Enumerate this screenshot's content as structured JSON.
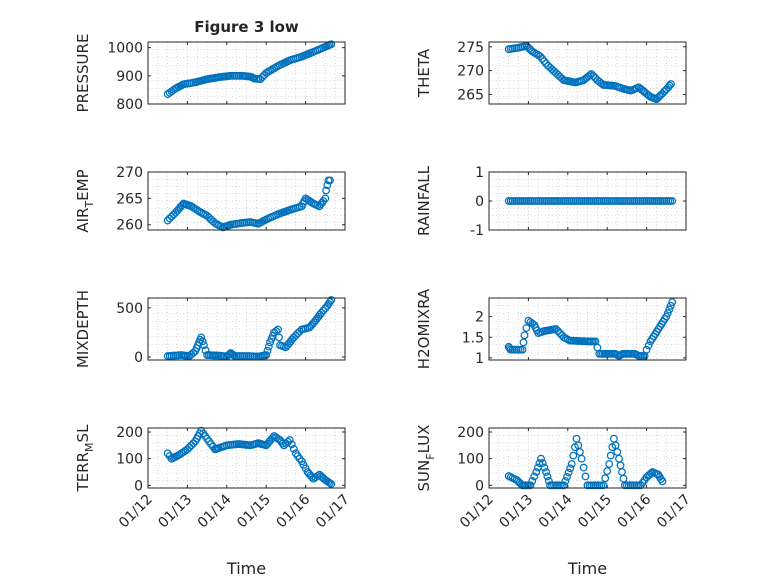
{
  "chart_data": [
    {
      "id": "pressure",
      "type": "scatter",
      "title": "Figure 3 low",
      "ylabel": "PRESSURE",
      "ylabel_parts": [
        "PRESSURE"
      ],
      "xlim": [
        0,
        5
      ],
      "ylim": [
        800,
        1020
      ],
      "yticks": [
        800,
        900,
        1000
      ],
      "ytick_labels": [
        "800",
        "900",
        "1000"
      ],
      "xticks": [
        0,
        1,
        2,
        3,
        4,
        5
      ],
      "show_xticklabels": false,
      "xlabel": "",
      "grid": true,
      "keypoints": [
        [
          0.5,
          835
        ],
        [
          0.7,
          855
        ],
        [
          0.9,
          870
        ],
        [
          1.2,
          877
        ],
        [
          1.5,
          888
        ],
        [
          1.8,
          895
        ],
        [
          2.1,
          900
        ],
        [
          2.4,
          900
        ],
        [
          2.6,
          897
        ],
        [
          2.7,
          890
        ],
        [
          2.85,
          888
        ],
        [
          3.0,
          910
        ],
        [
          3.3,
          935
        ],
        [
          3.6,
          955
        ],
        [
          3.9,
          968
        ],
        [
          4.2,
          985
        ],
        [
          4.45,
          1000
        ],
        [
          4.65,
          1012
        ]
      ]
    },
    {
      "id": "theta",
      "type": "scatter",
      "title": "",
      "ylabel": "THETA",
      "ylabel_parts": [
        "THETA"
      ],
      "xlim": [
        0,
        5
      ],
      "ylim": [
        263,
        276
      ],
      "yticks": [
        265,
        270,
        275
      ],
      "ytick_labels": [
        "265",
        "270",
        "275"
      ],
      "xticks": [
        0,
        1,
        2,
        3,
        4,
        5
      ],
      "show_xticklabels": false,
      "xlabel": "",
      "grid": true,
      "keypoints": [
        [
          0.5,
          274.5
        ],
        [
          0.75,
          274.8
        ],
        [
          0.95,
          275.2
        ],
        [
          1.1,
          274
        ],
        [
          1.3,
          273
        ],
        [
          1.5,
          271
        ],
        [
          1.7,
          269.5
        ],
        [
          1.9,
          268
        ],
        [
          2.2,
          267.5
        ],
        [
          2.4,
          268
        ],
        [
          2.6,
          269.3
        ],
        [
          2.75,
          268
        ],
        [
          2.9,
          267
        ],
        [
          3.2,
          266.8
        ],
        [
          3.4,
          266.2
        ],
        [
          3.6,
          265.8
        ],
        [
          3.8,
          266.5
        ],
        [
          3.95,
          265.5
        ],
        [
          4.1,
          264.5
        ],
        [
          4.25,
          264
        ],
        [
          4.4,
          265.2
        ],
        [
          4.55,
          266.5
        ],
        [
          4.62,
          267.2
        ]
      ]
    },
    {
      "id": "airtemp",
      "type": "scatter",
      "title": "",
      "ylabel": "AIR_TEMP",
      "ylabel_parts": [
        "AIR",
        "T",
        "EMP"
      ],
      "xlim": [
        0,
        5
      ],
      "ylim": [
        259,
        270
      ],
      "yticks": [
        260,
        265,
        270
      ],
      "ytick_labels": [
        "260",
        "265",
        "270"
      ],
      "xticks": [
        0,
        1,
        2,
        3,
        4,
        5
      ],
      "show_xticklabels": false,
      "xlabel": "",
      "grid": true,
      "keypoints": [
        [
          0.5,
          260.8
        ],
        [
          0.7,
          262.3
        ],
        [
          0.9,
          264
        ],
        [
          1.1,
          263.5
        ],
        [
          1.3,
          262.5
        ],
        [
          1.5,
          261.7
        ],
        [
          1.7,
          260.3
        ],
        [
          1.9,
          259.5
        ],
        [
          2.1,
          260
        ],
        [
          2.35,
          260.3
        ],
        [
          2.6,
          260.5
        ],
        [
          2.8,
          260.2
        ],
        [
          3.0,
          261
        ],
        [
          3.3,
          262
        ],
        [
          3.6,
          262.8
        ],
        [
          3.9,
          263.5
        ],
        [
          4.0,
          265
        ],
        [
          4.2,
          264
        ],
        [
          4.35,
          263.5
        ],
        [
          4.45,
          264.5
        ],
        [
          4.5,
          265
        ],
        [
          4.52,
          266.5
        ],
        [
          4.55,
          267.5
        ],
        [
          4.58,
          268.4
        ],
        [
          4.62,
          268.4
        ]
      ]
    },
    {
      "id": "rainfall",
      "type": "scatter",
      "title": "",
      "ylabel": "RAINFALL",
      "ylabel_parts": [
        "RAINFALL"
      ],
      "xlim": [
        0,
        5
      ],
      "ylim": [
        -1,
        1
      ],
      "yticks": [
        -1,
        0,
        1
      ],
      "ytick_labels": [
        "-1",
        "0",
        "1"
      ],
      "xticks": [
        0,
        1,
        2,
        3,
        4,
        5
      ],
      "show_xticklabels": false,
      "xlabel": "",
      "grid": true,
      "keypoints": [
        [
          0.5,
          0
        ],
        [
          4.65,
          0
        ]
      ]
    },
    {
      "id": "mixdepth",
      "type": "scatter",
      "title": "",
      "ylabel": "MIXDEPTH",
      "ylabel_parts": [
        "MIXDEPTH"
      ],
      "xlim": [
        0,
        5
      ],
      "ylim": [
        -30,
        600
      ],
      "yticks": [
        0,
        500
      ],
      "ytick_labels": [
        "0",
        "500"
      ],
      "xticks": [
        0,
        1,
        2,
        3,
        4,
        5
      ],
      "show_xticklabels": false,
      "xlabel": "",
      "grid": true,
      "keypoints": [
        [
          0.5,
          10
        ],
        [
          0.85,
          20
        ],
        [
          1.05,
          10
        ],
        [
          1.2,
          60
        ],
        [
          1.3,
          150
        ],
        [
          1.35,
          200
        ],
        [
          1.42,
          120
        ],
        [
          1.5,
          20
        ],
        [
          1.8,
          15
        ],
        [
          2.0,
          5
        ],
        [
          2.1,
          40
        ],
        [
          2.2,
          10
        ],
        [
          2.5,
          10
        ],
        [
          2.8,
          5
        ],
        [
          3.0,
          20
        ],
        [
          3.1,
          150
        ],
        [
          3.2,
          250
        ],
        [
          3.3,
          280
        ],
        [
          3.35,
          120
        ],
        [
          3.5,
          100
        ],
        [
          3.7,
          200
        ],
        [
          3.9,
          280
        ],
        [
          4.1,
          300
        ],
        [
          4.25,
          370
        ],
        [
          4.4,
          450
        ],
        [
          4.55,
          520
        ],
        [
          4.65,
          580
        ]
      ]
    },
    {
      "id": "h2omixra",
      "type": "scatter",
      "title": "",
      "ylabel": "H2OMIXRA",
      "ylabel_parts": [
        "H2OMIXRA"
      ],
      "xlim": [
        0,
        5
      ],
      "ylim": [
        0.95,
        2.45
      ],
      "yticks": [
        1,
        1.5,
        2
      ],
      "ytick_labels": [
        "1",
        "1.5",
        "2"
      ],
      "xticks": [
        0,
        1,
        2,
        3,
        4,
        5
      ],
      "show_xticklabels": false,
      "xlabel": "",
      "grid": true,
      "keypoints": [
        [
          0.5,
          1.27
        ],
        [
          0.55,
          1.2
        ],
        [
          0.85,
          1.2
        ],
        [
          0.9,
          1.55
        ],
        [
          1.0,
          1.9
        ],
        [
          1.15,
          1.8
        ],
        [
          1.25,
          1.6
        ],
        [
          1.4,
          1.65
        ],
        [
          1.7,
          1.7
        ],
        [
          1.9,
          1.5
        ],
        [
          2.05,
          1.42
        ],
        [
          2.5,
          1.4
        ],
        [
          2.7,
          1.4
        ],
        [
          2.8,
          1.1
        ],
        [
          3.2,
          1.1
        ],
        [
          3.3,
          1.05
        ],
        [
          3.4,
          1.1
        ],
        [
          3.7,
          1.1
        ],
        [
          3.8,
          1.05
        ],
        [
          3.95,
          1.05
        ],
        [
          4.0,
          1.2
        ],
        [
          4.1,
          1.4
        ],
        [
          4.3,
          1.7
        ],
        [
          4.5,
          2.0
        ],
        [
          4.65,
          2.35
        ]
      ]
    },
    {
      "id": "terrmsl",
      "type": "scatter",
      "title": "",
      "ylabel": "TERR_MSL",
      "ylabel_parts": [
        "TERR",
        "M",
        "SL"
      ],
      "xlim": [
        0,
        5
      ],
      "ylim": [
        -10,
        215
      ],
      "yticks": [
        0,
        100,
        200
      ],
      "ytick_labels": [
        "0",
        "100",
        "200"
      ],
      "xticks": [
        0,
        1,
        2,
        3,
        4,
        5
      ],
      "show_xticklabels": true,
      "xlabel": "Time",
      "xtick_labels": [
        "01/12",
        "01/13",
        "01/14",
        "01/15",
        "01/16",
        "01/17"
      ],
      "grid": true,
      "keypoints": [
        [
          0.5,
          120
        ],
        [
          0.6,
          100
        ],
        [
          0.8,
          115
        ],
        [
          1.0,
          135
        ],
        [
          1.2,
          165
        ],
        [
          1.35,
          205
        ],
        [
          1.5,
          175
        ],
        [
          1.7,
          135
        ],
        [
          1.8,
          140
        ],
        [
          2.0,
          150
        ],
        [
          2.3,
          155
        ],
        [
          2.6,
          150
        ],
        [
          2.8,
          158
        ],
        [
          3.0,
          150
        ],
        [
          3.2,
          185
        ],
        [
          3.35,
          170
        ],
        [
          3.45,
          150
        ],
        [
          3.6,
          170
        ],
        [
          3.75,
          120
        ],
        [
          3.9,
          90
        ],
        [
          4.05,
          50
        ],
        [
          4.2,
          25
        ],
        [
          4.35,
          40
        ],
        [
          4.5,
          20
        ],
        [
          4.65,
          5
        ]
      ]
    },
    {
      "id": "sunflux",
      "type": "scatter",
      "title": "",
      "ylabel": "SUN_FLUX",
      "ylabel_parts": [
        "SUN",
        "F",
        "LUX"
      ],
      "xlim": [
        0,
        5
      ],
      "ylim": [
        -10,
        215
      ],
      "yticks": [
        0,
        100,
        200
      ],
      "ytick_labels": [
        "0",
        "100",
        "200"
      ],
      "xticks": [
        0,
        1,
        2,
        3,
        4,
        5
      ],
      "show_xticklabels": true,
      "xlabel": "Time",
      "xtick_labels": [
        "01/12",
        "01/13",
        "01/14",
        "01/15",
        "01/16",
        "01/17"
      ],
      "grid": true,
      "keypoints": [
        [
          0.5,
          35
        ],
        [
          0.7,
          20
        ],
        [
          0.85,
          0
        ],
        [
          1.05,
          0
        ],
        [
          1.2,
          50
        ],
        [
          1.32,
          100
        ],
        [
          1.45,
          50
        ],
        [
          1.55,
          0
        ],
        [
          1.9,
          0
        ],
        [
          2.1,
          80
        ],
        [
          2.22,
          175
        ],
        [
          2.35,
          100
        ],
        [
          2.5,
          0
        ],
        [
          2.9,
          0
        ],
        [
          3.05,
          80
        ],
        [
          3.17,
          175
        ],
        [
          3.3,
          100
        ],
        [
          3.45,
          0
        ],
        [
          3.85,
          0
        ],
        [
          4.0,
          30
        ],
        [
          4.15,
          50
        ],
        [
          4.3,
          40
        ],
        [
          4.4,
          15
        ]
      ]
    }
  ]
}
